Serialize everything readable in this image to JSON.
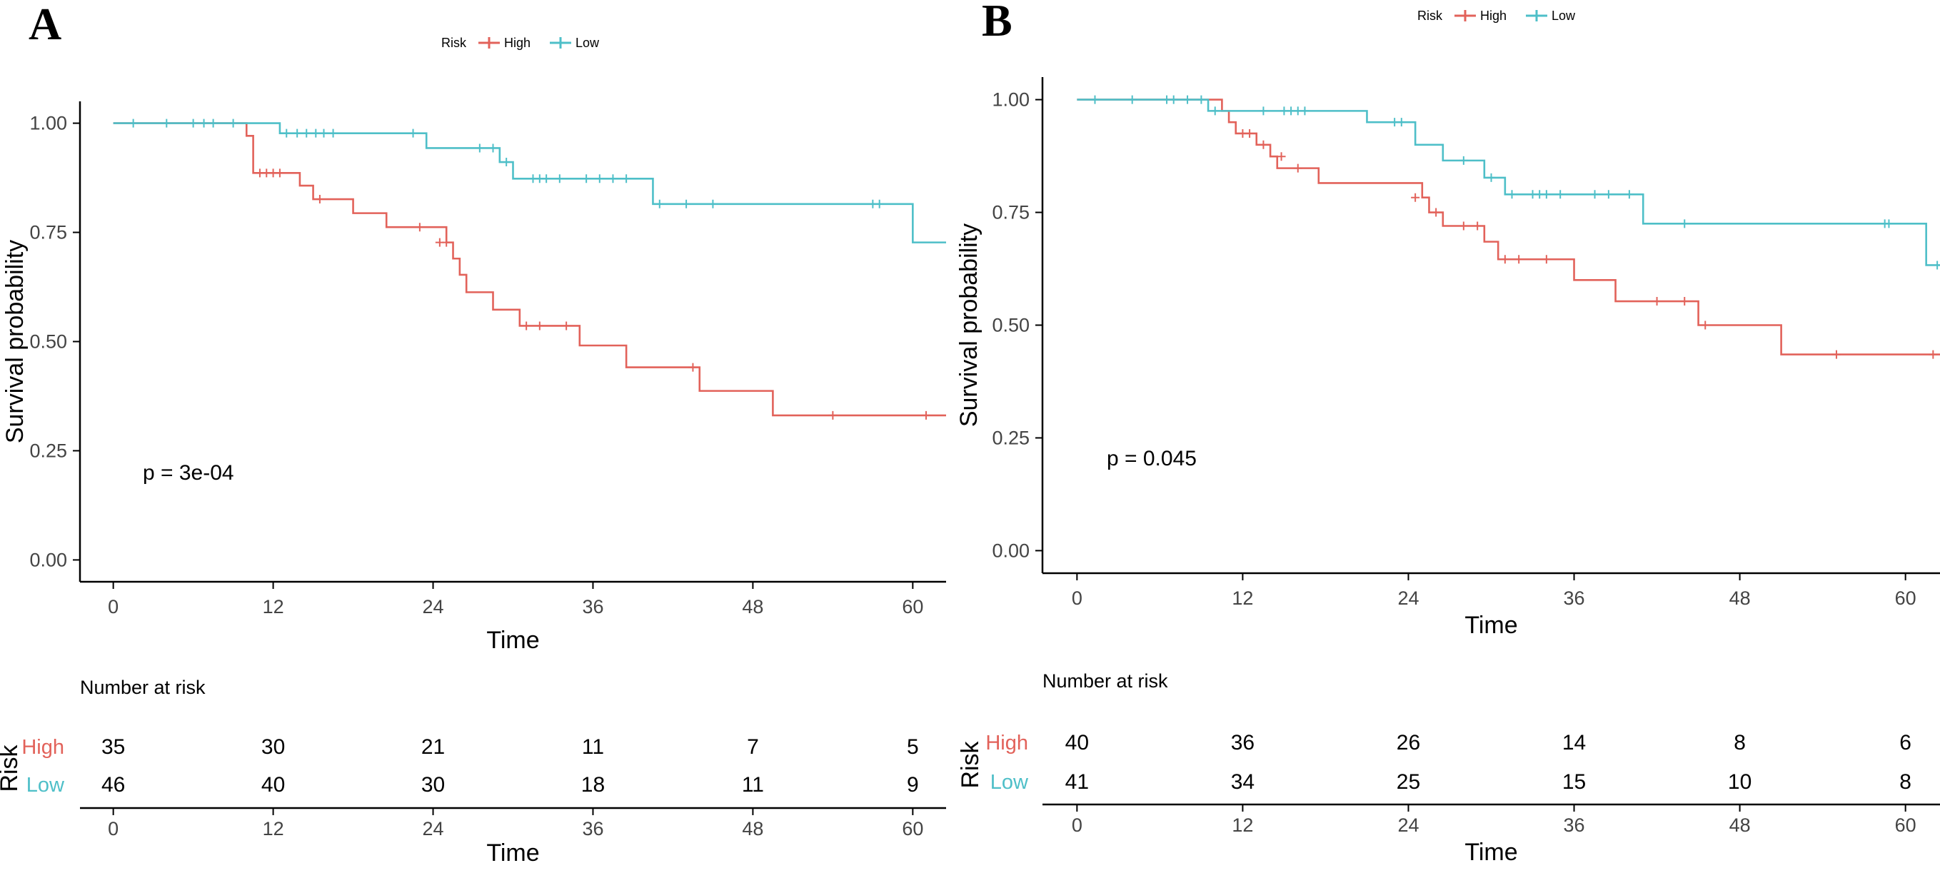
{
  "colors": {
    "high": "#e2625a",
    "low": "#4ebfc8",
    "axis": "#000000",
    "tick_text": "#444444"
  },
  "chart_data": [
    {
      "type": "line",
      "panel_label": "A",
      "legend": {
        "title": "Risk",
        "entries": [
          "High",
          "Low"
        ],
        "placement": "top-center"
      },
      "xlabel": "Time",
      "ylabel": "Survival probability",
      "xlim": [
        -2.5,
        62.5
      ],
      "ylim": [
        -0.05,
        1.05
      ],
      "xticks": [
        0,
        12,
        24,
        36,
        48,
        60
      ],
      "yticks": [
        0,
        0.25,
        0.5,
        0.75,
        1.0
      ],
      "ytick_labels": [
        "0.00",
        "0.25",
        "0.50",
        "0.75",
        "1.00"
      ],
      "pvalue_text": "p = 3e-04",
      "series": [
        {
          "name": "High",
          "steps": [
            [
              0,
              1.0
            ],
            [
              10,
              0.971
            ],
            [
              10.5,
              0.886
            ],
            [
              14,
              0.857
            ],
            [
              15,
              0.826
            ],
            [
              18,
              0.794
            ],
            [
              20.5,
              0.762
            ],
            [
              25,
              0.727
            ],
            [
              25.5,
              0.69
            ],
            [
              26,
              0.653
            ],
            [
              26.5,
              0.613
            ],
            [
              28.5,
              0.573
            ],
            [
              30.5,
              0.536
            ],
            [
              35,
              0.491
            ],
            [
              38.5,
              0.441
            ],
            [
              44,
              0.387
            ],
            [
              49.5,
              0.331
            ],
            [
              62.5,
              0.331
            ]
          ],
          "censored": [
            [
              11,
              0.886
            ],
            [
              11.5,
              0.886
            ],
            [
              12,
              0.886
            ],
            [
              12.5,
              0.886
            ],
            [
              15.5,
              0.826
            ],
            [
              23,
              0.762
            ],
            [
              24.5,
              0.727
            ],
            [
              25,
              0.727
            ],
            [
              31,
              0.536
            ],
            [
              32,
              0.536
            ],
            [
              34,
              0.536
            ],
            [
              43.5,
              0.441
            ],
            [
              54,
              0.331
            ],
            [
              61,
              0.331
            ]
          ]
        },
        {
          "name": "Low",
          "steps": [
            [
              0,
              1.0
            ],
            [
              12.5,
              0.977
            ],
            [
              23.5,
              0.943
            ],
            [
              29,
              0.911
            ],
            [
              30,
              0.873
            ],
            [
              40.5,
              0.815
            ],
            [
              60,
              0.727
            ],
            [
              62.5,
              0.727
            ]
          ],
          "censored": [
            [
              1.5,
              1.0
            ],
            [
              4,
              1.0
            ],
            [
              6,
              1.0
            ],
            [
              6.8,
              1.0
            ],
            [
              7.5,
              1.0
            ],
            [
              9,
              1.0
            ],
            [
              13,
              0.977
            ],
            [
              13.8,
              0.977
            ],
            [
              14.5,
              0.977
            ],
            [
              15.2,
              0.977
            ],
            [
              15.8,
              0.977
            ],
            [
              16.5,
              0.977
            ],
            [
              22.5,
              0.977
            ],
            [
              27.5,
              0.943
            ],
            [
              28.5,
              0.943
            ],
            [
              29.5,
              0.911
            ],
            [
              31.5,
              0.873
            ],
            [
              32,
              0.873
            ],
            [
              32.5,
              0.873
            ],
            [
              33.5,
              0.873
            ],
            [
              35.5,
              0.873
            ],
            [
              36.5,
              0.873
            ],
            [
              37.5,
              0.873
            ],
            [
              38.5,
              0.873
            ],
            [
              41,
              0.815
            ],
            [
              43,
              0.815
            ],
            [
              45,
              0.815
            ],
            [
              57,
              0.815
            ],
            [
              57.5,
              0.815
            ]
          ]
        }
      ],
      "risk_table": {
        "title": "Number at risk",
        "ylabel": "Risk",
        "xlabel": "Time",
        "times": [
          0,
          12,
          24,
          36,
          48,
          60
        ],
        "rows": [
          {
            "label": "High",
            "counts": [
              35,
              30,
              21,
              11,
              7,
              5
            ]
          },
          {
            "label": "Low",
            "counts": [
              46,
              40,
              30,
              18,
              11,
              9
            ]
          }
        ]
      }
    },
    {
      "type": "line",
      "panel_label": "B",
      "legend": {
        "title": "Risk",
        "entries": [
          "High",
          "Low"
        ],
        "placement": "top-center"
      },
      "xlabel": "Time",
      "ylabel": "Survival probability",
      "xlim": [
        -2.5,
        62.5
      ],
      "ylim": [
        -0.05,
        1.05
      ],
      "xticks": [
        0,
        12,
        24,
        36,
        48,
        60
      ],
      "yticks": [
        0,
        0.25,
        0.5,
        0.75,
        1.0
      ],
      "ytick_labels": [
        "0.00",
        "0.25",
        "0.50",
        "0.75",
        "1.00"
      ],
      "pvalue_text": "p = 0.045",
      "series": [
        {
          "name": "High",
          "steps": [
            [
              0,
              1.0
            ],
            [
              10.5,
              0.975
            ],
            [
              11,
              0.95
            ],
            [
              11.5,
              0.925
            ],
            [
              13,
              0.9
            ],
            [
              14,
              0.874
            ],
            [
              14.5,
              0.848
            ],
            [
              17.5,
              0.815
            ],
            [
              25,
              0.783
            ],
            [
              25.5,
              0.75
            ],
            [
              26.5,
              0.72
            ],
            [
              29.5,
              0.685
            ],
            [
              30.5,
              0.646
            ],
            [
              36,
              0.6
            ],
            [
              39,
              0.553
            ],
            [
              45,
              0.5
            ],
            [
              51,
              0.435
            ],
            [
              62.5,
              0.435
            ]
          ],
          "censored": [
            [
              12,
              0.925
            ],
            [
              12.5,
              0.925
            ],
            [
              13.5,
              0.9
            ],
            [
              14.8,
              0.874
            ],
            [
              16,
              0.848
            ],
            [
              24.5,
              0.783
            ],
            [
              26,
              0.75
            ],
            [
              28,
              0.72
            ],
            [
              29,
              0.72
            ],
            [
              31,
              0.646
            ],
            [
              32,
              0.646
            ],
            [
              34,
              0.646
            ],
            [
              42,
              0.553
            ],
            [
              44,
              0.553
            ],
            [
              45.5,
              0.5
            ],
            [
              55,
              0.435
            ],
            [
              62,
              0.435
            ]
          ]
        },
        {
          "name": "Low",
          "steps": [
            [
              0,
              1.0
            ],
            [
              9.5,
              0.975
            ],
            [
              21,
              0.95
            ],
            [
              24.5,
              0.9
            ],
            [
              26.5,
              0.865
            ],
            [
              29.5,
              0.827
            ],
            [
              31,
              0.79
            ],
            [
              41,
              0.725
            ],
            [
              61.5,
              0.633
            ],
            [
              62.5,
              0.633
            ]
          ],
          "censored": [
            [
              1.3,
              1.0
            ],
            [
              4,
              1.0
            ],
            [
              6.5,
              1.0
            ],
            [
              7,
              1.0
            ],
            [
              8,
              1.0
            ],
            [
              9,
              1.0
            ],
            [
              10,
              0.975
            ],
            [
              13.5,
              0.975
            ],
            [
              15,
              0.975
            ],
            [
              15.5,
              0.975
            ],
            [
              16,
              0.975
            ],
            [
              16.5,
              0.975
            ],
            [
              23,
              0.95
            ],
            [
              23.5,
              0.95
            ],
            [
              28,
              0.865
            ],
            [
              30,
              0.827
            ],
            [
              31.5,
              0.79
            ],
            [
              33,
              0.79
            ],
            [
              33.5,
              0.79
            ],
            [
              34,
              0.79
            ],
            [
              35,
              0.79
            ],
            [
              37.5,
              0.79
            ],
            [
              38.5,
              0.79
            ],
            [
              40,
              0.79
            ],
            [
              44,
              0.725
            ],
            [
              58.5,
              0.725
            ],
            [
              58.8,
              0.725
            ],
            [
              62.3,
              0.633
            ]
          ]
        }
      ],
      "risk_table": {
        "title": "Number at risk",
        "ylabel": "Risk",
        "xlabel": "Time",
        "times": [
          0,
          12,
          24,
          36,
          48,
          60
        ],
        "rows": [
          {
            "label": "High",
            "counts": [
              40,
              36,
              26,
              14,
              8,
              6
            ]
          },
          {
            "label": "Low",
            "counts": [
              41,
              34,
              25,
              15,
              10,
              8
            ]
          }
        ]
      }
    }
  ]
}
